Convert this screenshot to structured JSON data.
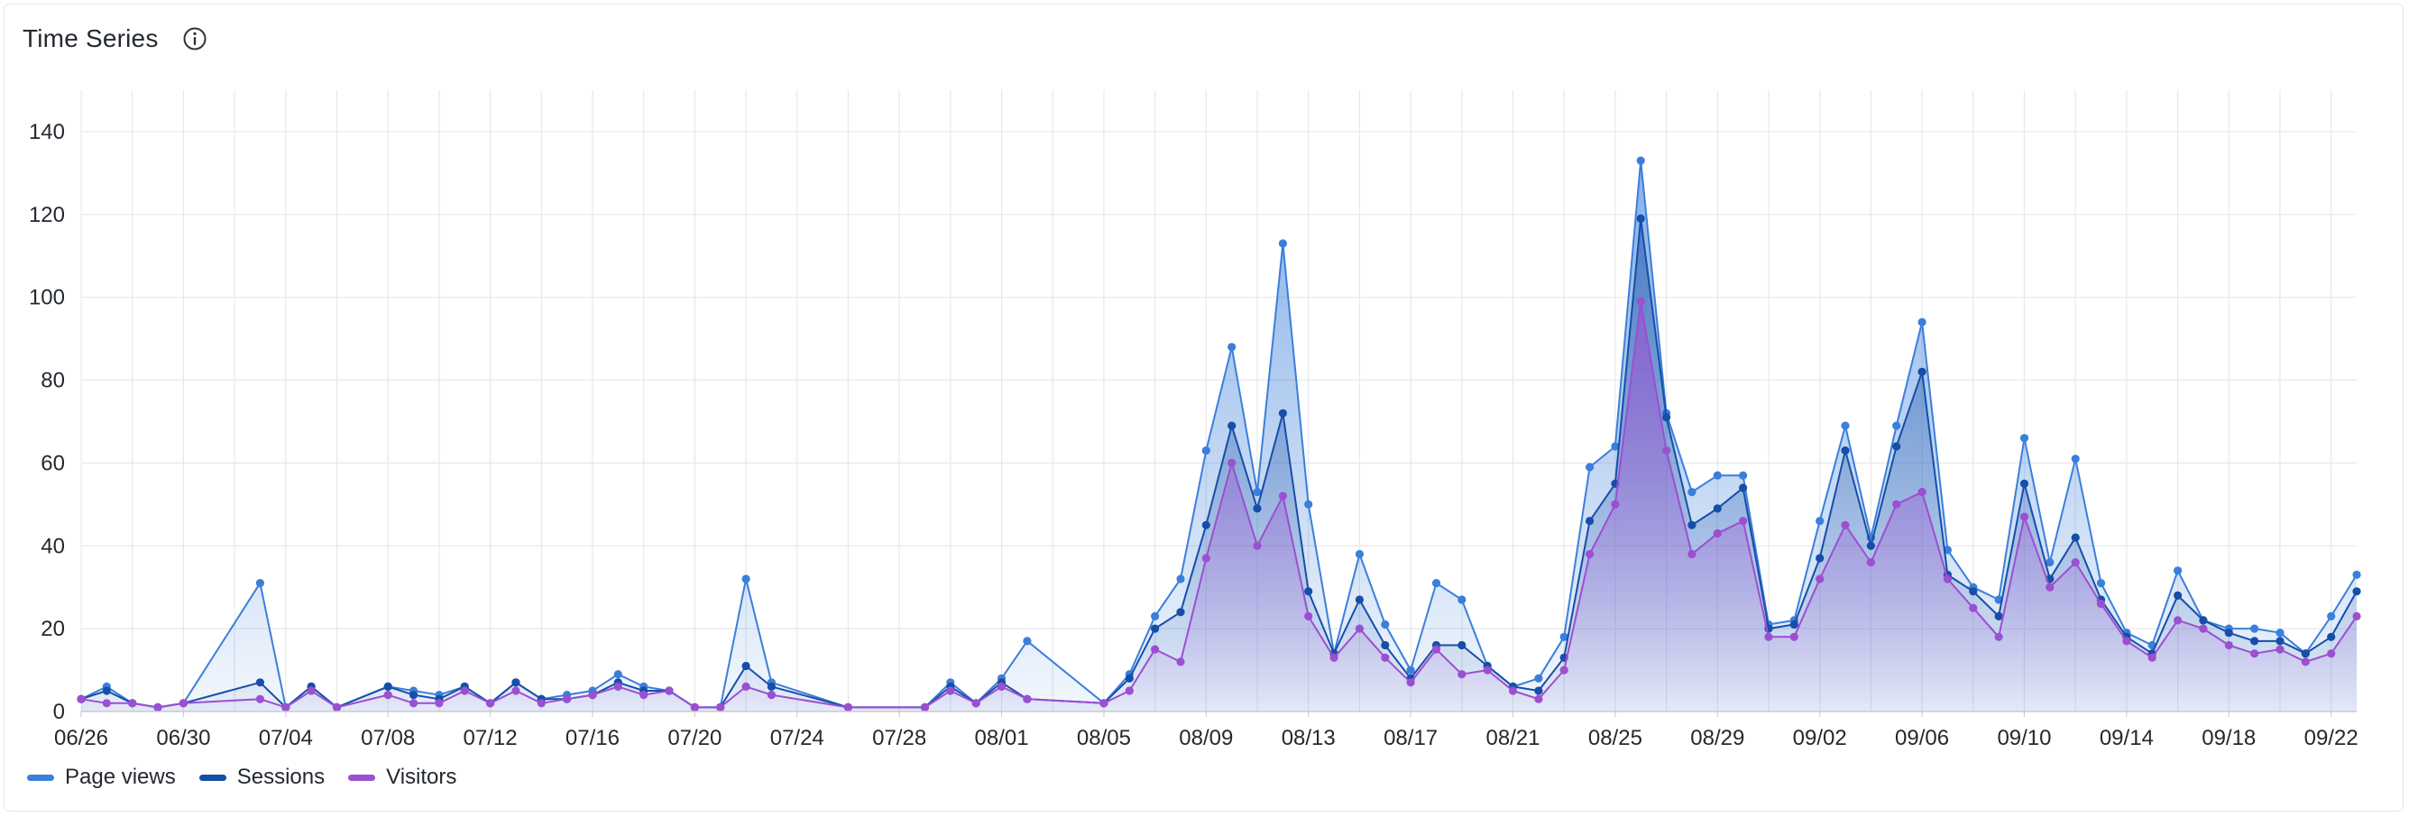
{
  "panel": {
    "title": "Time Series",
    "info_icon": "info-circle-icon"
  },
  "chart_data": {
    "type": "area",
    "x": [
      "06/26",
      "06/27",
      "06/28",
      "06/29",
      "06/30",
      "07/03",
      "07/04",
      "07/05",
      "07/06",
      "07/08",
      "07/09",
      "07/10",
      "07/11",
      "07/12",
      "07/13",
      "07/14",
      "07/15",
      "07/16",
      "07/17",
      "07/18",
      "07/19",
      "07/20",
      "07/21",
      "07/22",
      "07/23",
      "07/26",
      "07/29",
      "07/30",
      "07/31",
      "08/01",
      "08/02",
      "08/05",
      "08/06",
      "08/07",
      "08/08",
      "08/09",
      "08/10",
      "08/11",
      "08/12",
      "08/13",
      "08/14",
      "08/15",
      "08/16",
      "08/17",
      "08/18",
      "08/19",
      "08/20",
      "08/21",
      "08/22",
      "08/23",
      "08/24",
      "08/25",
      "08/26",
      "08/27",
      "08/28",
      "08/29",
      "08/30",
      "08/31",
      "09/01",
      "09/02",
      "09/03",
      "09/04",
      "09/05",
      "09/06",
      "09/07",
      "09/08",
      "09/09",
      "09/10",
      "09/11",
      "09/12",
      "09/13",
      "09/14",
      "09/15",
      "09/16",
      "09/17",
      "09/18",
      "09/19",
      "09/20",
      "09/21",
      "09/22",
      "09/23"
    ],
    "series": [
      {
        "name": "Page views",
        "color": "#3b7fdb",
        "values": [
          3,
          6,
          2,
          1,
          2,
          31,
          1,
          6,
          1,
          6,
          5,
          4,
          6,
          2,
          7,
          3,
          4,
          5,
          9,
          6,
          5,
          1,
          1,
          32,
          7,
          1,
          1,
          7,
          2,
          8,
          17,
          2,
          9,
          23,
          32,
          63,
          88,
          53,
          113,
          50,
          14,
          38,
          21,
          10,
          31,
          27,
          11,
          6,
          8,
          18,
          59,
          64,
          133,
          72,
          53,
          57,
          57,
          21,
          22,
          46,
          69,
          42,
          69,
          94,
          39,
          30,
          27,
          66,
          36,
          61,
          31,
          19,
          16,
          34,
          22,
          20,
          20,
          19,
          14,
          23,
          33
        ]
      },
      {
        "name": "Sessions",
        "color": "#164ea8",
        "values": [
          3,
          5,
          2,
          1,
          2,
          7,
          1,
          6,
          1,
          6,
          4,
          3,
          6,
          2,
          7,
          3,
          3,
          4,
          7,
          5,
          5,
          1,
          1,
          11,
          6,
          1,
          1,
          6,
          2,
          7,
          3,
          2,
          8,
          20,
          24,
          45,
          69,
          49,
          72,
          29,
          14,
          27,
          16,
          8,
          16,
          16,
          11,
          6,
          5,
          13,
          46,
          55,
          119,
          71,
          45,
          49,
          54,
          20,
          21,
          37,
          63,
          40,
          64,
          82,
          33,
          29,
          23,
          55,
          32,
          42,
          27,
          18,
          14,
          28,
          22,
          19,
          17,
          17,
          14,
          18,
          29
        ]
      },
      {
        "name": "Visitors",
        "color": "#9b4fd1",
        "values": [
          3,
          2,
          2,
          1,
          2,
          3,
          1,
          5,
          1,
          4,
          2,
          2,
          5,
          2,
          5,
          2,
          3,
          4,
          6,
          4,
          5,
          1,
          1,
          6,
          4,
          1,
          1,
          5,
          2,
          6,
          3,
          2,
          5,
          15,
          12,
          37,
          60,
          40,
          52,
          23,
          13,
          20,
          13,
          7,
          15,
          9,
          10,
          5,
          3,
          10,
          38,
          50,
          99,
          63,
          38,
          43,
          46,
          18,
          18,
          32,
          45,
          36,
          50,
          53,
          32,
          25,
          18,
          47,
          30,
          36,
          26,
          17,
          13,
          22,
          20,
          16,
          14,
          15,
          12,
          14,
          23
        ]
      }
    ],
    "x_ticks": [
      "06/26",
      "06/30",
      "07/04",
      "07/08",
      "07/12",
      "07/16",
      "07/20",
      "07/24",
      "07/28",
      "08/01",
      "08/05",
      "08/09",
      "08/13",
      "08/17",
      "08/21",
      "08/25",
      "08/29",
      "09/02",
      "09/06",
      "09/10",
      "09/14",
      "09/18",
      "09/22"
    ],
    "y_ticks": [
      0,
      20,
      40,
      60,
      80,
      100,
      120,
      140
    ],
    "ylim": [
      0,
      150
    ],
    "grid": true,
    "legend_position": "bottom-left"
  }
}
